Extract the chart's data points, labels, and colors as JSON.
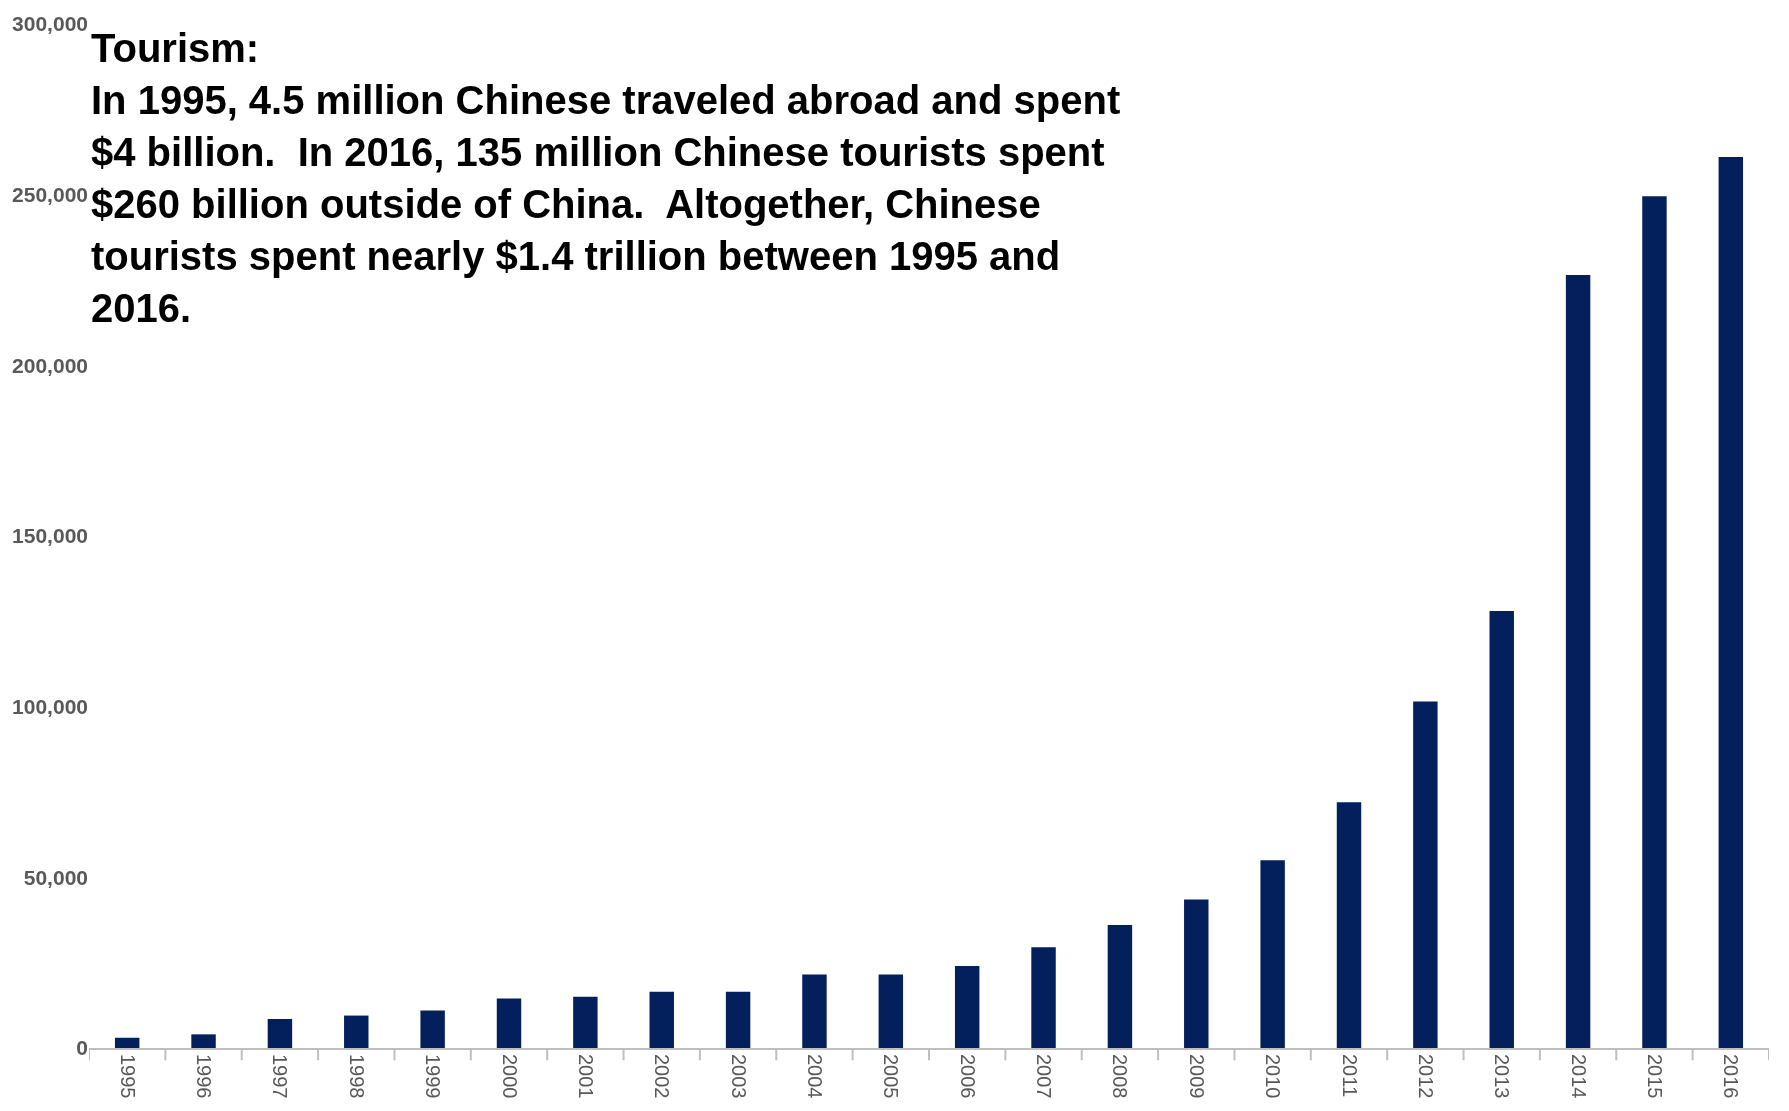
{
  "chart_data": {
    "type": "bar",
    "categories": [
      "1995",
      "1996",
      "1997",
      "1998",
      "1999",
      "2000",
      "2001",
      "2002",
      "2003",
      "2004",
      "2005",
      "2006",
      "2007",
      "2008",
      "2009",
      "2010",
      "2011",
      "2012",
      "2013",
      "2014",
      "2015",
      "2016"
    ],
    "values": [
      3000,
      4000,
      8500,
      9500,
      11000,
      14500,
      15000,
      16500,
      16500,
      21500,
      21500,
      24000,
      29500,
      36000,
      43500,
      55000,
      72000,
      101500,
      128000,
      226500,
      249500,
      261000
    ],
    "color": "#031f5c",
    "ylim": [
      0,
      300000
    ],
    "yticks": [
      0,
      {
        "value": 50000,
        "label": "50,000"
      },
      {
        "value": 100000,
        "label": "100,000"
      },
      {
        "value": 150000,
        "label": "150,000"
      },
      {
        "value": 200000,
        "label": "200,000"
      },
      {
        "value": 250000,
        "label": "250,000"
      },
      {
        "value": 300000,
        "label": "300,000"
      }
    ],
    "legend": false,
    "annotations": [
      "Tourism:\nIn 1995, 4.5 million Chinese traveled abroad and spent\n$4 billion.  In 2016, 135 million Chinese tourists spent\n$260 billion outside of China.  Altogether, Chinese\ntourists spent nearly $1.4 trillion between 1995 and\n2016."
    ]
  }
}
